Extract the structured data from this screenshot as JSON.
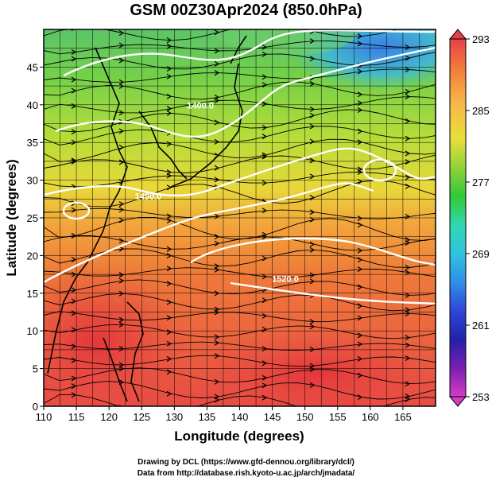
{
  "title": "GSM 00Z30Apr2024 (850.0hPa)",
  "map": {
    "xlabel": "Longitude (degrees)",
    "ylabel": "Latitude  (degrees)",
    "lon_range": [
      110,
      170
    ],
    "lat_range": [
      0,
      50
    ],
    "lon_ticks": [
      110,
      115,
      120,
      125,
      130,
      135,
      140,
      145,
      150,
      155,
      160,
      165
    ],
    "lat_ticks": [
      0,
      5,
      10,
      15,
      20,
      25,
      30,
      35,
      40,
      45
    ],
    "contour_labels": [
      {
        "text": "1400.0",
        "lon": 134,
        "lat": 39.5
      },
      {
        "text": "1490.0",
        "lon": 126,
        "lat": 27.5
      },
      {
        "text": "1520.0",
        "lon": 147,
        "lat": 16.5
      }
    ]
  },
  "colorbar": {
    "ticks": [
      "293",
      "285",
      "277",
      "269",
      "261",
      "253"
    ],
    "colors": [
      "#e8404a",
      "#f07a3a",
      "#f7b84a",
      "#e9df3a",
      "#8fd23a",
      "#32c836",
      "#2fd9b0",
      "#2fc3e0",
      "#2f8fe8",
      "#2f47d8",
      "#2222a8",
      "#7a1fb0",
      "#d63cc8"
    ]
  },
  "credits": {
    "line1": "Drawing by DCL (https://www.gfd-dennou.org/library/dcl/)",
    "line2": "Data from http://database.rish.kyoto-u.ac.jp/arch/jmadata/"
  }
}
